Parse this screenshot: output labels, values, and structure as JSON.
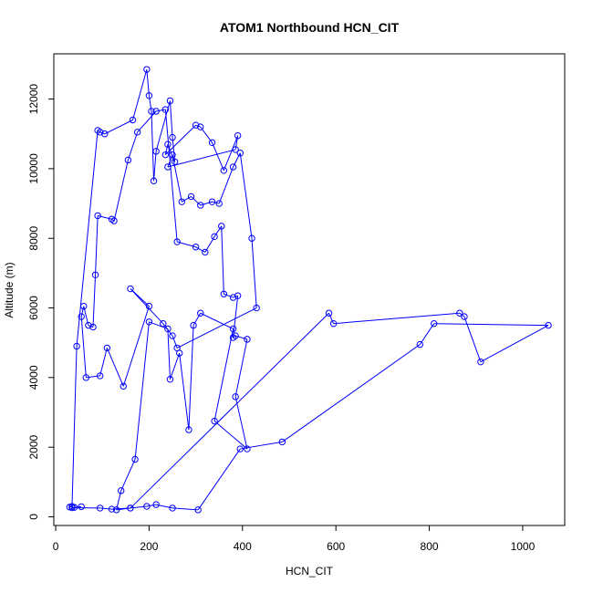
{
  "chart_data": {
    "type": "scatter",
    "title": "ATOM1 Northbound HCN_CIT",
    "xlabel": "HCN_CIT",
    "ylabel": "Altitude (m)",
    "xlim": [
      -4,
      1090
    ],
    "ylim": [
      -250,
      13300
    ],
    "xticks": [
      0,
      200,
      400,
      600,
      800,
      1000
    ],
    "yticks": [
      0,
      2000,
      4000,
      6000,
      8000,
      10000,
      12000
    ],
    "xtick_labels": [
      "0",
      "200",
      "400",
      "600",
      "800",
      "1000"
    ],
    "ytick_labels": [
      "0",
      "2000",
      "4000",
      "6000",
      "8000",
      "10000",
      "12000"
    ],
    "grid": false,
    "legend": "none",
    "color": "#0000ff",
    "connected": true,
    "marker": "open-circle",
    "series": [
      {
        "x": [
          30,
          35,
          45,
          90,
          95,
          105,
          165,
          195,
          200,
          205,
          210,
          215,
          245,
          250,
          255,
          240,
          235,
          300,
          310,
          335,
          360,
          390,
          385,
          240,
          250,
          270,
          290,
          310,
          335,
          350,
          380,
          395,
          420,
          430,
          260,
          250,
          230,
          160,
          200,
          145,
          110,
          95,
          65,
          55,
          60,
          70,
          80,
          85,
          90,
          120,
          125,
          155,
          175,
          215,
          235,
          260,
          300,
          320,
          340,
          355,
          360,
          380,
          390,
          380,
          385,
          410,
          385,
          410,
          340,
          380,
          310,
          295,
          285,
          265,
          245,
          240,
          200,
          170,
          140,
          130,
          160,
          585,
          595,
          865,
          875,
          910,
          1055,
          810,
          780,
          485,
          395,
          305,
          250,
          215,
          195,
          160,
          120,
          95,
          35,
          40,
          55
        ],
        "y": [
          280,
          300,
          4900,
          11100,
          11050,
          11000,
          11400,
          12850,
          12100,
          11650,
          9650,
          10500,
          11950,
          10900,
          10200,
          10700,
          10400,
          11250,
          11200,
          10750,
          9950,
          10950,
          10550,
          10050,
          10400,
          9050,
          9200,
          8950,
          9050,
          9000,
          10050,
          10450,
          8000,
          6000,
          4850,
          5200,
          5550,
          6550,
          6050,
          3750,
          4850,
          4050,
          4000,
          5750,
          6050,
          5500,
          5450,
          6950,
          8650,
          8550,
          8500,
          10250,
          11050,
          11650,
          11700,
          7900,
          7750,
          7600,
          8050,
          8350,
          6400,
          6300,
          6350,
          5150,
          5200,
          5100,
          3450,
          1950,
          2750,
          5400,
          5850,
          5500,
          2500,
          4700,
          3950,
          5400,
          5600,
          1650,
          750,
          200,
          250,
          5850,
          5550,
          5850,
          5750,
          4450,
          5500,
          5550,
          4950,
          2150,
          1950,
          200,
          250,
          350,
          300,
          250,
          220,
          250,
          260,
          270,
          290
        ]
      }
    ]
  }
}
